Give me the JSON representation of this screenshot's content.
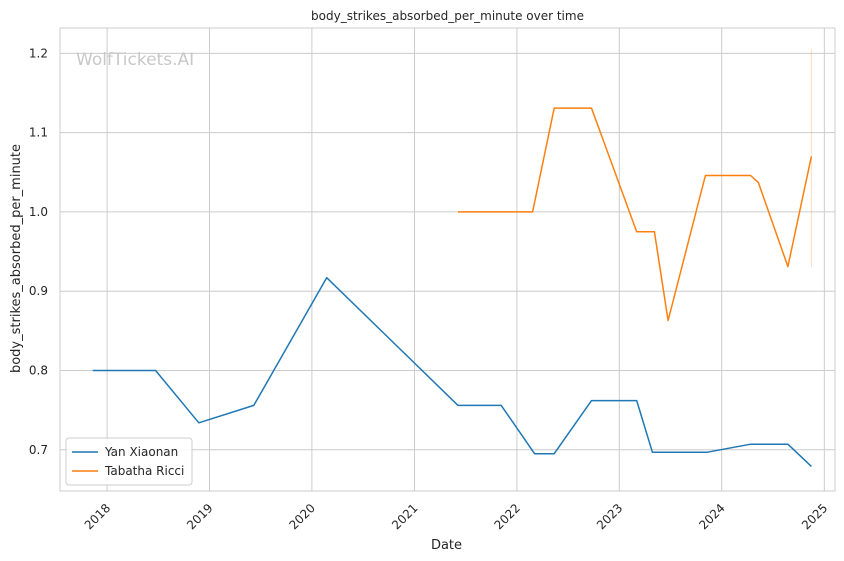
{
  "chart_data": {
    "type": "line",
    "title": "body_strikes_absorbed_per_minute over time",
    "xlabel": "Date",
    "ylabel": "body_strikes_absorbed_per_minute",
    "watermark": "WolfTickets.AI",
    "xlim": [
      "2017-07-17",
      "2025-02-08"
    ],
    "ylim": [
      0.648,
      1.232
    ],
    "x_ticks": [
      {
        "date": "2018-01-01",
        "label": "2018"
      },
      {
        "date": "2019-01-01",
        "label": "2019"
      },
      {
        "date": "2020-01-01",
        "label": "2020"
      },
      {
        "date": "2021-01-01",
        "label": "2021"
      },
      {
        "date": "2022-01-01",
        "label": "2022"
      },
      {
        "date": "2023-01-01",
        "label": "2023"
      },
      {
        "date": "2024-01-01",
        "label": "2024"
      },
      {
        "date": "2025-01-01",
        "label": "2025"
      }
    ],
    "y_ticks": [
      {
        "value": 0.7,
        "label": "0.7"
      },
      {
        "value": 0.8,
        "label": "0.8"
      },
      {
        "value": 0.9,
        "label": "0.9"
      },
      {
        "value": 1.0,
        "label": "1.0"
      },
      {
        "value": 1.1,
        "label": "1.1"
      },
      {
        "value": 1.2,
        "label": "1.2"
      }
    ],
    "grid": true,
    "legend_position": "lower-left",
    "series": [
      {
        "name": "Yan Xiaonan",
        "color": "#1f77b4",
        "points": [
          {
            "x": "2017-11-11",
            "y": 0.8
          },
          {
            "x": "2018-06-23",
            "y": 0.8
          },
          {
            "x": "2018-11-24",
            "y": 0.734
          },
          {
            "x": "2019-06-08",
            "y": 0.756
          },
          {
            "x": "2020-02-23",
            "y": 0.917
          },
          {
            "x": "2021-06-05",
            "y": 0.756
          },
          {
            "x": "2021-11-06",
            "y": 0.756
          },
          {
            "x": "2022-03-05",
            "y": 0.695
          },
          {
            "x": "2022-05-14",
            "y": 0.695
          },
          {
            "x": "2022-09-24",
            "y": 0.762
          },
          {
            "x": "2023-03-04",
            "y": 0.762
          },
          {
            "x": "2023-04-29",
            "y": 0.697
          },
          {
            "x": "2023-11-11",
            "y": 0.697
          },
          {
            "x": "2024-04-13",
            "y": 0.707
          },
          {
            "x": "2024-08-24",
            "y": 0.707
          },
          {
            "x": "2024-11-16",
            "y": 0.679
          }
        ]
      },
      {
        "name": "Tabatha Ricci",
        "color": "#ff7f0e",
        "points": [
          {
            "x": "2021-06-05",
            "y": 1.0
          },
          {
            "x": "2022-02-26",
            "y": 1.0
          },
          {
            "x": "2022-05-14",
            "y": 1.131
          },
          {
            "x": "2022-09-24",
            "y": 1.131
          },
          {
            "x": "2023-03-04",
            "y": 0.975
          },
          {
            "x": "2023-05-06",
            "y": 0.975
          },
          {
            "x": "2023-06-24",
            "y": 0.863
          },
          {
            "x": "2023-11-04",
            "y": 1.046
          },
          {
            "x": "2024-04-13",
            "y": 1.046
          },
          {
            "x": "2024-05-11",
            "y": 1.037
          },
          {
            "x": "2024-08-24",
            "y": 0.931
          },
          {
            "x": "2024-11-16",
            "y": 1.07
          }
        ]
      }
    ]
  }
}
